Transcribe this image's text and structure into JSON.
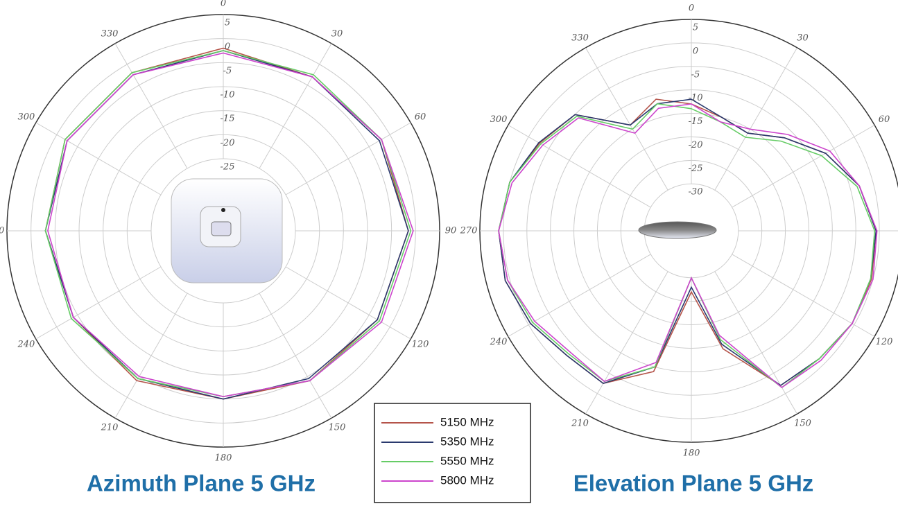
{
  "chart_data": [
    {
      "type": "polar",
      "title": "Azimuth Plane 5 GHz",
      "theta": [
        0,
        30,
        60,
        90,
        120,
        150,
        180,
        210,
        240,
        270,
        300,
        330
      ],
      "thetaticks": [
        0,
        30,
        60,
        90,
        120,
        150,
        180,
        210,
        240,
        270,
        300,
        330
      ],
      "rlim": [
        -40,
        5
      ],
      "rticks": [
        5,
        0,
        -5,
        -10,
        -15,
        -20,
        -25
      ],
      "series": [
        {
          "name": "5150 MHz",
          "color": "#b5544a",
          "values": [
            -2,
            -3,
            -2,
            -1.5,
            -3,
            -4,
            -5,
            -4,
            -4,
            -3,
            -2,
            -2
          ]
        },
        {
          "name": "5350 MHz",
          "color": "#2a3a6e",
          "values": [
            -2.5,
            -3,
            -2.5,
            -1.5,
            -3,
            -4.5,
            -5,
            -4.5,
            -4,
            -3,
            -2.5,
            -2.5
          ]
        },
        {
          "name": "5550 MHz",
          "color": "#66cc66",
          "values": [
            -2.5,
            -2.5,
            -2,
            -1,
            -2.5,
            -4,
            -5.5,
            -4.5,
            -3.5,
            -3,
            -2,
            -2
          ]
        },
        {
          "name": "5800 MHz",
          "color": "#cc44cc",
          "values": [
            -3,
            -3,
            -2,
            -0.5,
            -2,
            -4,
            -5.5,
            -5,
            -4,
            -3.5,
            -2.5,
            -2.5
          ]
        }
      ]
    },
    {
      "type": "polar",
      "title": "Elevation Plane 5 GHz",
      "theta": [
        0,
        15,
        30,
        45,
        60,
        75,
        90,
        105,
        120,
        135,
        150,
        165,
        180,
        195,
        210,
        225,
        240,
        255,
        270,
        285,
        300,
        315,
        330,
        345
      ],
      "thetaticks": [
        0,
        30,
        60,
        90,
        120,
        150,
        180,
        210,
        240,
        270,
        300,
        330
      ],
      "rlim": [
        -40,
        5
      ],
      "rticks": [
        5,
        0,
        -5,
        -10,
        -15,
        -20,
        -25,
        -30
      ],
      "series": [
        {
          "color": "#b5544a",
          "values": [
            -13,
            -15,
            -16,
            -12,
            -7,
            -3,
            -0.7,
            -0.3,
            -0.5,
            -1.5,
            -2,
            -14,
            -27,
            -9,
            -2.5,
            -2.5,
            -0.5,
            1,
            1,
            0,
            -2.7,
            -5,
            -14,
            -11
          ]
        },
        {
          "color": "#2a3a6e",
          "values": [
            -12,
            -15,
            -16,
            -12,
            -7,
            -3,
            -0.7,
            -0.5,
            -0.5,
            -1.5,
            -2,
            -15,
            -28,
            -10,
            -2.5,
            -2.5,
            -0.5,
            1,
            1,
            0,
            -2.5,
            -5,
            -14,
            -12
          ]
        },
        {
          "color": "#66cc66",
          "values": [
            -14,
            -16,
            -17,
            -13,
            -8,
            -3.5,
            -1,
            -0.5,
            -0.5,
            -1.5,
            -1.5,
            -16,
            -30,
            -10,
            -3,
            -3,
            -1,
            0.5,
            1,
            0,
            -3,
            -5.5,
            -15,
            -12
          ]
        },
        {
          "color": "#cc44cc",
          "values": [
            -13,
            -16,
            -15,
            -11,
            -6,
            -3,
            -0.5,
            0,
            -0.5,
            -1,
            -1.5,
            -17,
            -30,
            -11,
            -3,
            -3.5,
            -1.5,
            0.5,
            1,
            -0.5,
            -3.5,
            -6,
            -16,
            -13
          ]
        }
      ]
    }
  ]
}
